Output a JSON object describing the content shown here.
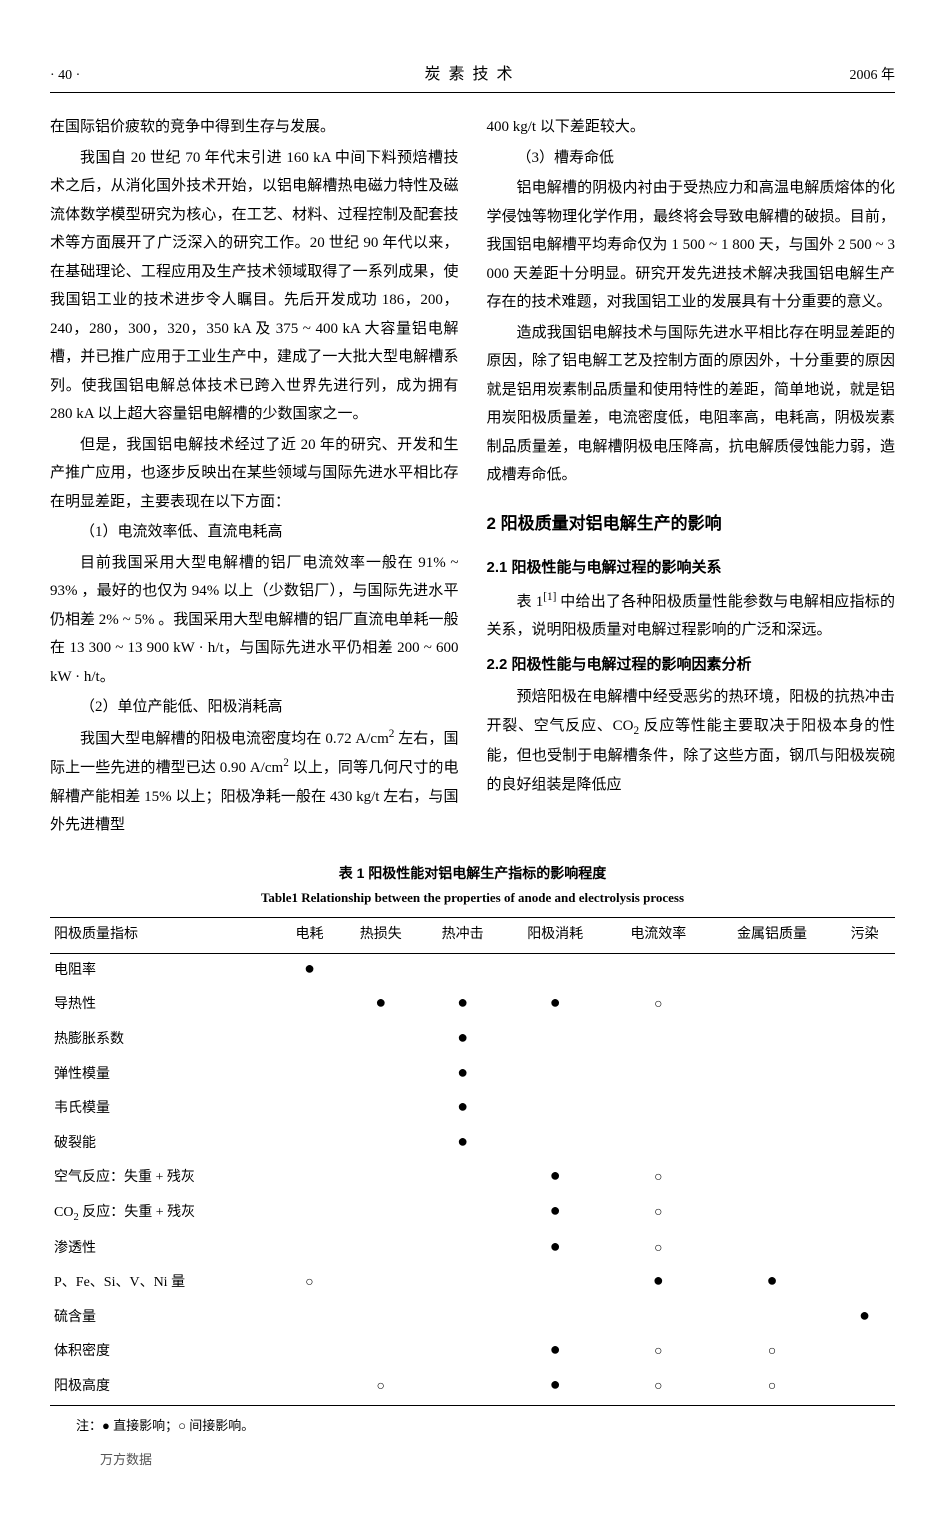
{
  "header": {
    "page": "· 40 ·",
    "journal": "炭素技术",
    "year": "2006 年"
  },
  "leftCol": {
    "p0": "在国际铝价疲软的竞争中得到生存与发展。",
    "p1a": "我国自 20 世纪 70 年代末引进 160 kA 中间下料预焙槽技术之后，从消化国外技术开始，以铝电解槽热电磁力特性及磁流体数学模型研究为核心，在工艺、材料、过程控制及配套技术等方面展开了广泛深入的研究工作。20 世纪 90 年代以来，在基础理论、工程应用及生产技术领域取得了一系列成果，使我国铝工业的技术进步令人瞩目。先后开发成功 186，200，240，280，300，320，350 kA 及 375 ~ 400 kA 大容量铝电解槽，并已推广应用于工业生产中，建成了一大批大型电解槽系列。使我国铝电解总体技术已跨入世界先进行列，成为拥有 280 kA 以上超大容量铝电解槽的少数国家之一。",
    "p2": "但是，我国铝电解技术经过了近 20 年的研究、开发和生产推广应用，也逐步反映出在某些领域与国际先进水平相比存在明显差距，主要表现在以下方面：",
    "p3": "（1）电流效率低、直流电耗高",
    "p4": "目前我国采用大型电解槽的铝厂电流效率一般在 91% ~ 93% ，最好的也仅为 94% 以上（少数铝厂），与国际先进水平仍相差 2% ~ 5% 。我国采用大型电解槽的铝厂直流电单耗一般在 13 300 ~ 13 900 kW · h/t，与国际先进水平仍相差 200 ~ 600 kW · h/t。",
    "p5": "（2）单位产能低、阳极消耗高",
    "p6a": "我国大型电解槽的阳极电流密度均在 0.72 A/cm",
    "p6b": " 左右，国际上一些先进的槽型已达 0.90 A/cm",
    "p6c": " 以上，同等几何尺寸的电解槽产能相差 15% 以上；阳极净耗一般在 430 kg/t 左右，与国外先进槽型"
  },
  "rightCol": {
    "p0": "400 kg/t 以下差距较大。",
    "p1": "（3）槽寿命低",
    "p2": "铝电解槽的阴极内衬由于受热应力和高温电解质熔体的化学侵蚀等物理化学作用，最终将会导致电解槽的破损。目前，我国铝电解槽平均寿命仅为 1 500 ~ 1 800 天，与国外 2 500 ~ 3 000 天差距十分明显。研究开发先进技术解决我国铝电解生产存在的技术难题，对我国铝工业的发展具有十分重要的意义。",
    "p3": "造成我国铝电解技术与国际先进水平相比存在明显差距的原因，除了铝电解工艺及控制方面的原因外，十分重要的原因就是铝用炭素制品质量和使用特性的差距，简单地说，就是铝用炭阳极质量差，电流密度低，电阻率高，电耗高，阴极炭素制品质量差，电解槽阴极电压降高，抗电解质侵蚀能力弱，造成槽寿命低。",
    "s2": "2  阳极质量对铝电解生产的影响",
    "s21": "2.1  阳极性能与电解过程的影响关系",
    "p4a": "表 1",
    "p4b": " 中给出了各种阳极质量性能参数与电解相应指标的关系，说明阳极质量对电解过程影响的广泛和深远。",
    "s22": "2.2  阳极性能与电解过程的影响因素分析",
    "p5a": "预焙阳极在电解槽中经受恶劣的热环境，阳极的抗热冲击开裂、空气反应、CO",
    "p5b": " 反应等性能主要取决于阳极本身的性能，但也受制于电解槽条件，除了这些方面，钢爪与阳极炭碗的良好组装是降低应"
  },
  "table": {
    "caption_cn": "表 1  阳极性能对铝电解生产指标的影响程度",
    "caption_en": "Table1  Relationship between the properties of anode and electrolysis process",
    "headers": [
      "阳极质量指标",
      "电耗",
      "热损失",
      "热冲击",
      "阳极消耗",
      "电流效率",
      "金属铝质量",
      "污染"
    ],
    "rows": [
      {
        "label": "电阻率",
        "cells": [
          "●",
          "",
          "",
          "",
          "",
          "",
          ""
        ]
      },
      {
        "label": "导热性",
        "cells": [
          "",
          "●",
          "●",
          "●",
          "○",
          "",
          ""
        ]
      },
      {
        "label": "热膨胀系数",
        "cells": [
          "",
          "",
          "●",
          "",
          "",
          "",
          ""
        ]
      },
      {
        "label": "弹性模量",
        "cells": [
          "",
          "",
          "●",
          "",
          "",
          "",
          ""
        ]
      },
      {
        "label": "韦氏模量",
        "cells": [
          "",
          "",
          "●",
          "",
          "",
          "",
          ""
        ]
      },
      {
        "label": "破裂能",
        "cells": [
          "",
          "",
          "●",
          "",
          "",
          "",
          ""
        ]
      },
      {
        "label": "空气反应：失重 + 残灰",
        "cells": [
          "",
          "",
          "",
          "●",
          "○",
          "",
          ""
        ]
      },
      {
        "label": "CO2 反应：失重 + 残灰",
        "cells": [
          "",
          "",
          "",
          "●",
          "○",
          "",
          ""
        ],
        "sub2": true
      },
      {
        "label": "渗透性",
        "cells": [
          "",
          "",
          "",
          "●",
          "○",
          "",
          ""
        ]
      },
      {
        "label": "P、Fe、Si、V、Ni 量",
        "cells": [
          "○",
          "",
          "",
          "",
          "●",
          "●",
          ""
        ]
      },
      {
        "label": "硫含量",
        "cells": [
          "",
          "",
          "",
          "",
          "",
          "",
          "●"
        ]
      },
      {
        "label": "体积密度",
        "cells": [
          "",
          "",
          "",
          "●",
          "○",
          "○",
          ""
        ]
      },
      {
        "label": "阳极高度",
        "cells": [
          "",
          "○",
          "",
          "●",
          "○",
          "○",
          ""
        ]
      }
    ],
    "note": "注：● 直接影响；○ 间接影响。"
  },
  "footer": "万方数据"
}
